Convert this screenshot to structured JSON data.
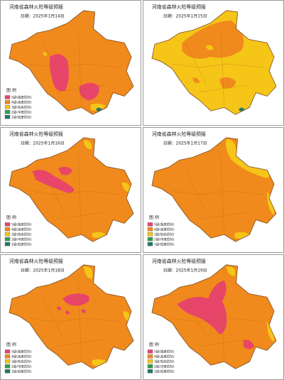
{
  "panels": [
    {
      "title": "河南省森林火险等级预报",
      "date": "日期：2025年1月14日"
    },
    {
      "title": "河南省森林火险等级预报",
      "date": "日期：2025年1月15日"
    },
    {
      "title": "河南省森林火险等级预报",
      "date": "日期：2025年1月16日"
    },
    {
      "title": "河南省森林火险等级预报",
      "date": "日期：2025年1月17日"
    },
    {
      "title": "河南省森林火险等级预报",
      "date": "日期：2025年1月18日"
    },
    {
      "title": "河南省森林火险等级预报",
      "date": "日期：2025年1月19日"
    }
  ],
  "legend": {
    "title": "图 例",
    "items": [
      "5级(极度危险)",
      "4级(高度危险)",
      "3级(较高危险)",
      "2级(中度危险)",
      "1级(低度危险)"
    ]
  }
}
